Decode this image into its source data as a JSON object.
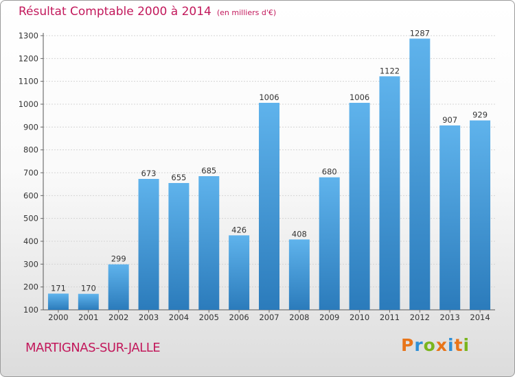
{
  "header": {
    "title": "Résultat Comptable 2000 à 2014",
    "unit": "(en milliers d'€)"
  },
  "footer": {
    "location": "MARTIGNAS-SUR-JALLE",
    "brand": "Proxiti",
    "brand_colors": [
      "#e8751a",
      "#2e8fd6",
      "#7ab51d",
      "#e8751a",
      "#2e8fd6",
      "#e8751a",
      "#7ab51d"
    ]
  },
  "colors": {
    "bar_top": "#5fb3ec",
    "bar_bottom": "#2b7bbb",
    "title": "#c2185b",
    "grid": "#d4d4d4"
  },
  "chart_data": {
    "type": "bar",
    "title": "Résultat Comptable 2000 à 2014",
    "categories": [
      "2000",
      "2001",
      "2002",
      "2003",
      "2004",
      "2005",
      "2006",
      "2007",
      "2008",
      "2009",
      "2010",
      "2011",
      "2012",
      "2013",
      "2014"
    ],
    "values": [
      171,
      170,
      299,
      673,
      655,
      685,
      426,
      1006,
      408,
      680,
      1006,
      1122,
      1287,
      907,
      929
    ],
    "ylim": [
      100,
      1300
    ],
    "yticks": [
      100,
      200,
      300,
      400,
      500,
      600,
      700,
      800,
      900,
      1000,
      1100,
      1200,
      1300
    ],
    "grid": true,
    "data_labels": true
  }
}
